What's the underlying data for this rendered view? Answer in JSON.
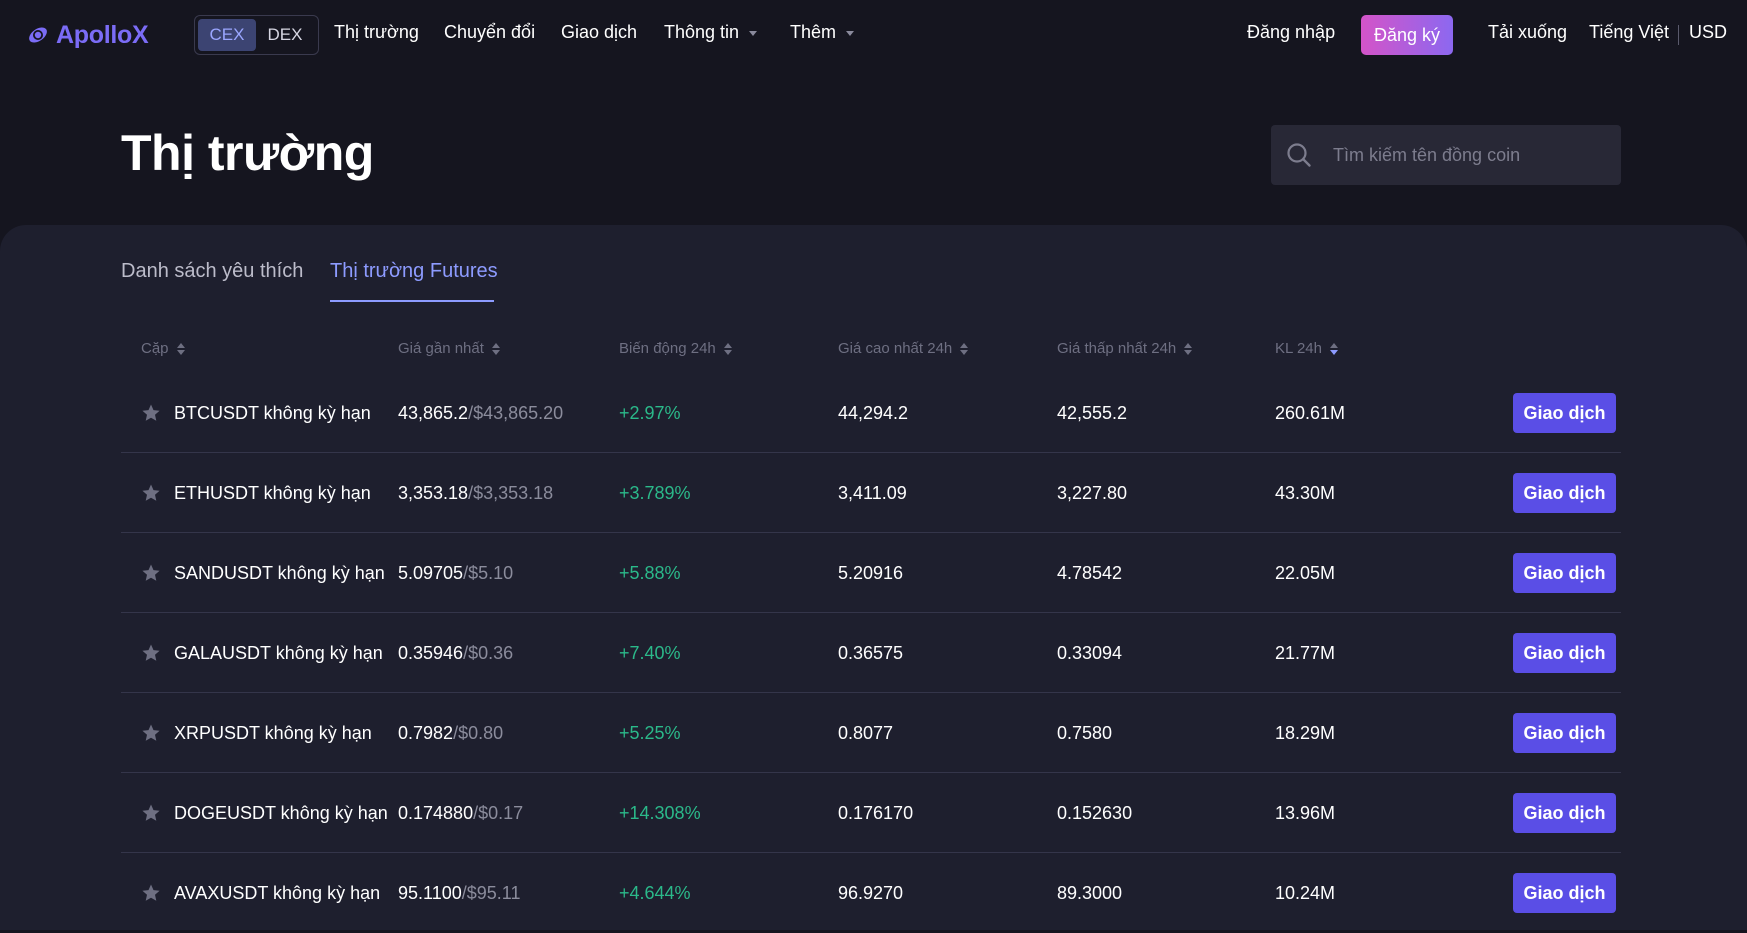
{
  "brand": {
    "name": "ApolloX"
  },
  "nav": {
    "toggle": [
      "CEX",
      "DEX"
    ],
    "markets": "Thị trường",
    "convert": "Chuyển đổi",
    "trade": "Giao dịch",
    "info": "Thông tin",
    "more": "Thêm",
    "login": "Đăng nhập",
    "signup": "Đăng ký",
    "download": "Tải xuống",
    "language": "Tiếng Việt",
    "currency": "USD"
  },
  "header": {
    "title": "Thị trường",
    "search_placeholder": "Tìm kiếm tên đồng coin"
  },
  "tabs": [
    "Danh sách yêu thích",
    "Thị trường Futures"
  ],
  "columns": [
    "Cặp",
    "Giá gần nhất",
    "Biến động 24h",
    "Giá cao nhất 24h",
    "Giá thấp nhất 24h",
    "KL 24h"
  ],
  "rows": [
    {
      "pair": "BTCUSDT không kỳ hạn",
      "price": "43,865.2",
      "price_usd": "/$43,865.20",
      "change": "+2.97%",
      "high": "44,294.2",
      "low": "42,555.2",
      "volume": "260.61M",
      "action": "Giao dịch"
    },
    {
      "pair": "ETHUSDT không kỳ hạn",
      "price": "3,353.18",
      "price_usd": "/$3,353.18",
      "change": "+3.789%",
      "high": "3,411.09",
      "low": "3,227.80",
      "volume": "43.30M",
      "action": "Giao dịch"
    },
    {
      "pair": "SANDUSDT không kỳ hạn",
      "price": "5.09705",
      "price_usd": "/$5.10",
      "change": "+5.88%",
      "high": "5.20916",
      "low": "4.78542",
      "volume": "22.05M",
      "action": "Giao dịch"
    },
    {
      "pair": "GALAUSDT không kỳ hạn",
      "price": "0.35946",
      "price_usd": "/$0.36",
      "change": "+7.40%",
      "high": "0.36575",
      "low": "0.33094",
      "volume": "21.77M",
      "action": "Giao dịch"
    },
    {
      "pair": "XRPUSDT không kỳ hạn",
      "price": "0.7982",
      "price_usd": "/$0.80",
      "change": "+5.25%",
      "high": "0.8077",
      "low": "0.7580",
      "volume": "18.29M",
      "action": "Giao dịch"
    },
    {
      "pair": "DOGEUSDT không kỳ hạn",
      "price": "0.174880",
      "price_usd": "/$0.17",
      "change": "+14.308%",
      "high": "0.176170",
      "low": "0.152630",
      "volume": "13.96M",
      "action": "Giao dịch"
    },
    {
      "pair": "AVAXUSDT không kỳ hạn",
      "price": "95.1100",
      "price_usd": "/$95.11",
      "change": "+4.644%",
      "high": "96.9270",
      "low": "89.3000",
      "volume": "10.24M",
      "action": "Giao dịch"
    }
  ],
  "colors": {
    "accent": "#8d9bff",
    "button": "#5a4ee6",
    "positive": "#2bb98a"
  }
}
